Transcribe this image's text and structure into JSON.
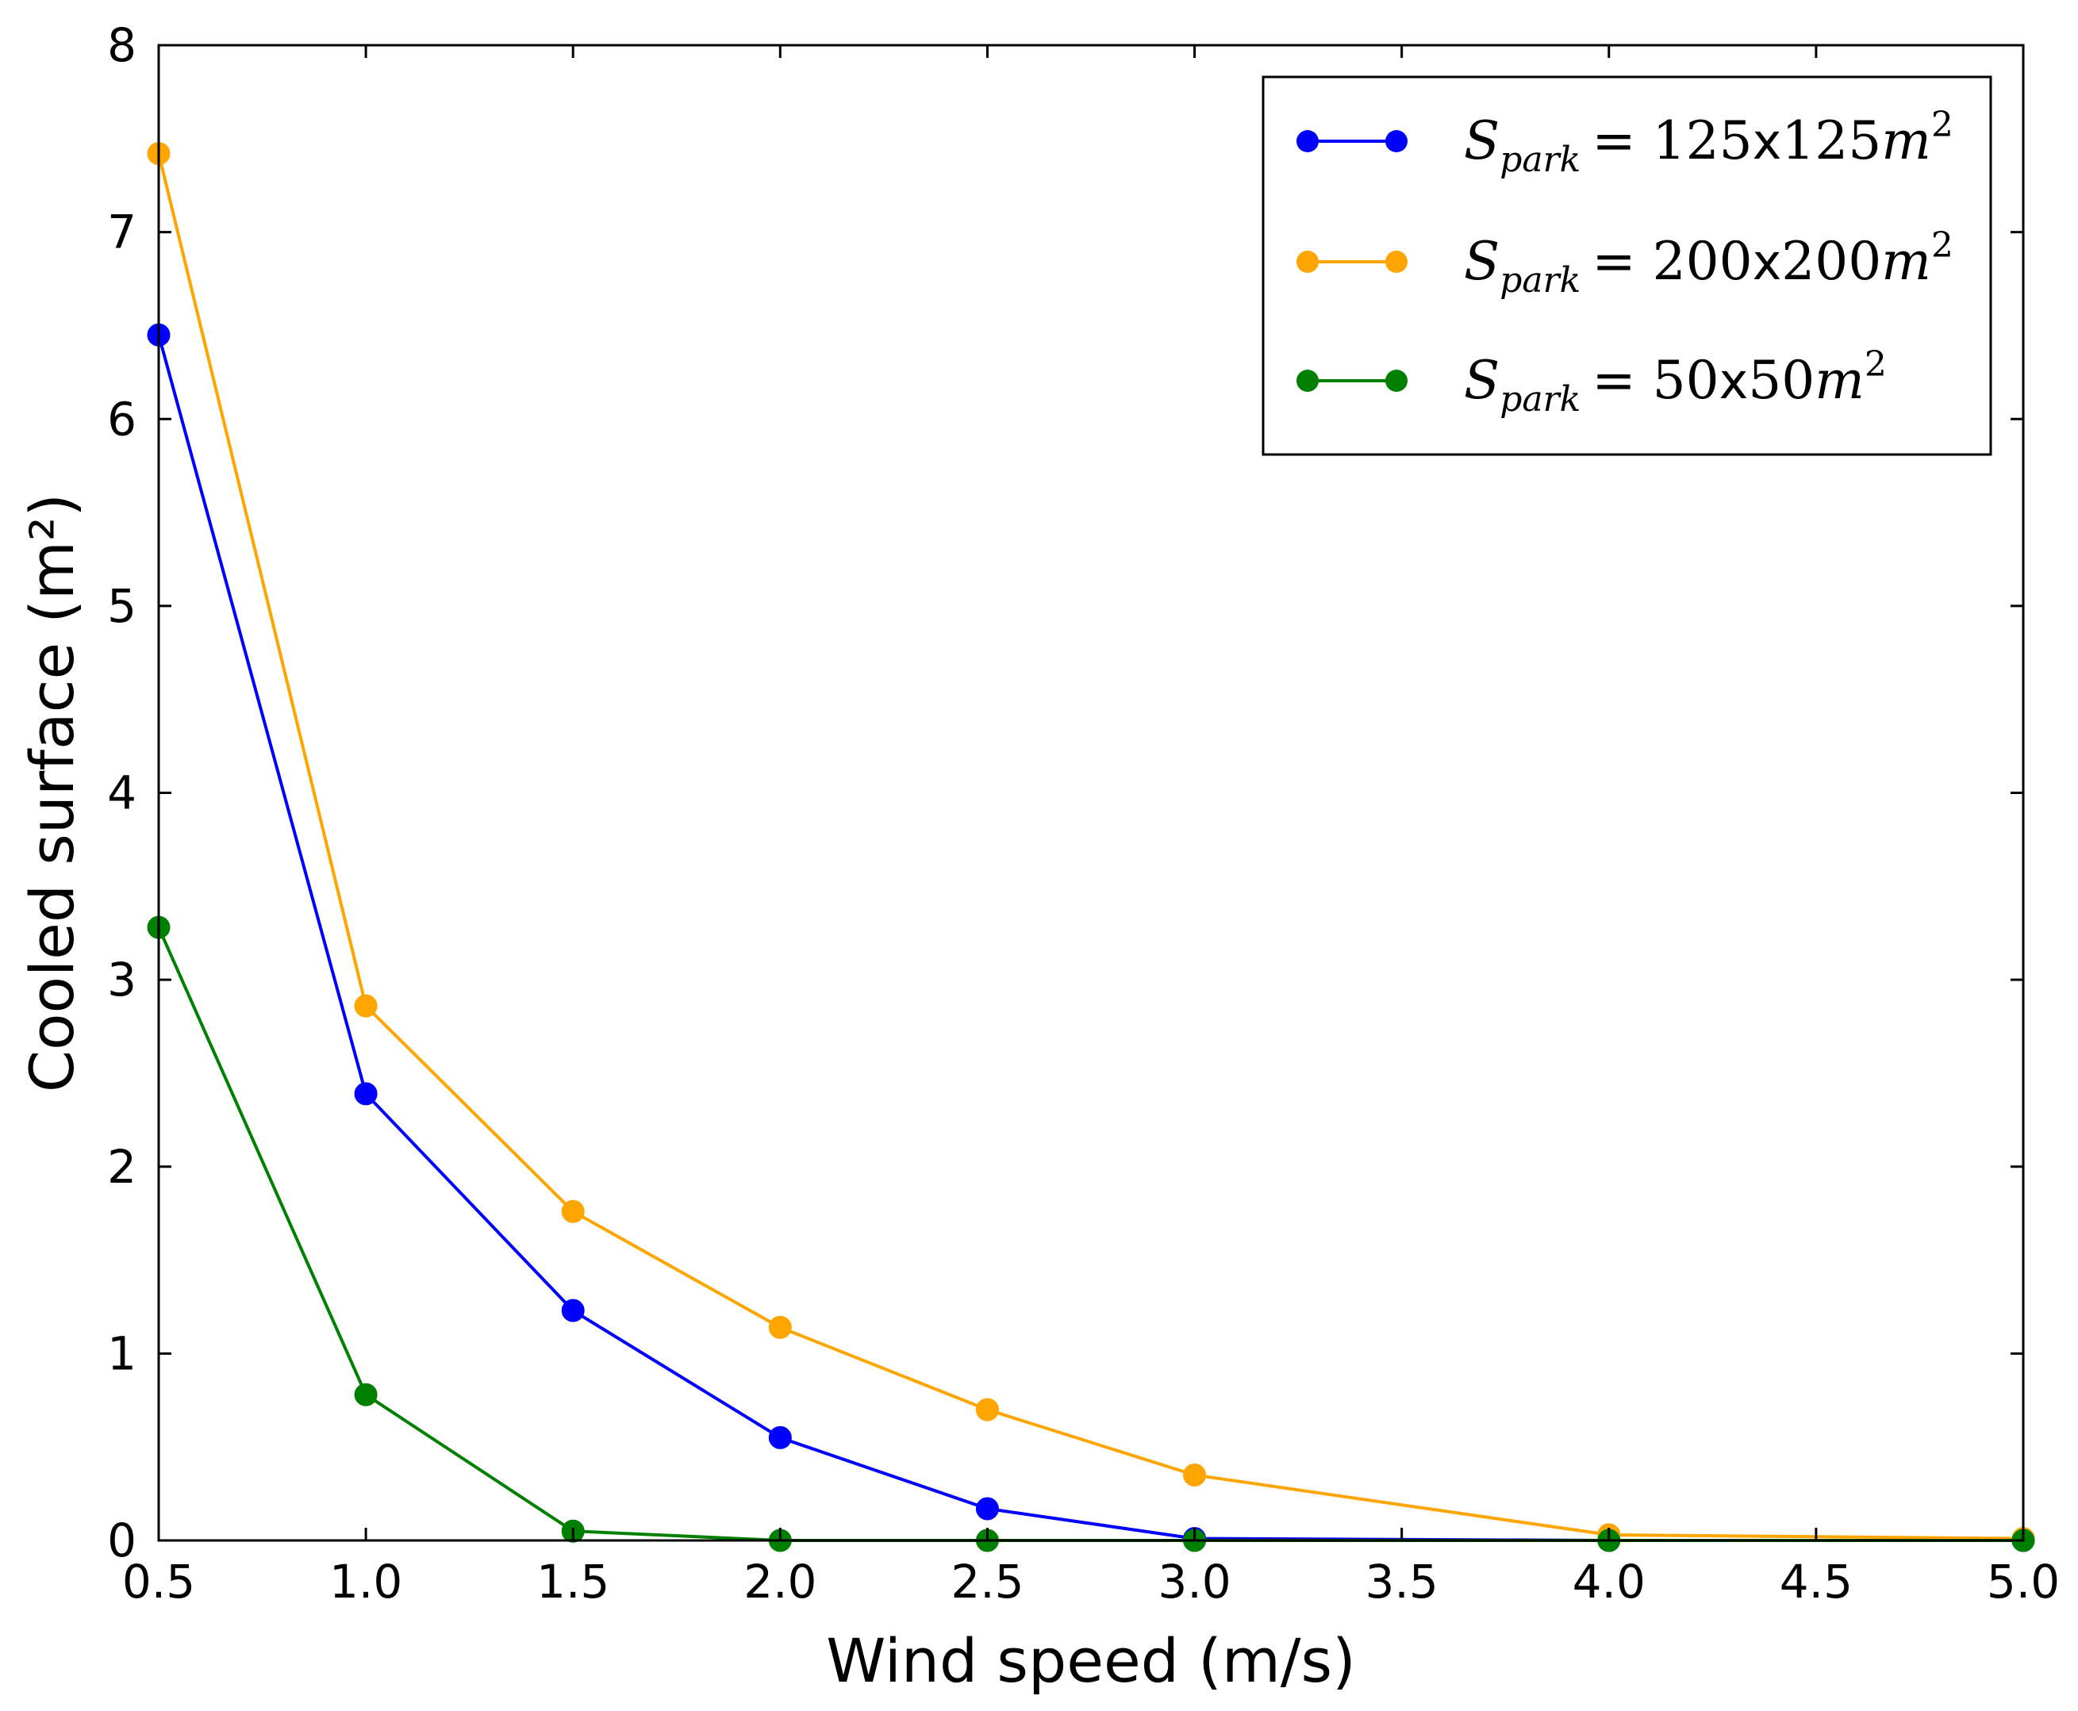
{
  "chart_data": {
    "type": "line",
    "title": "",
    "xlabel": "Wind speed (m/s)",
    "ylabel": "Cooled surface (m²)",
    "xlim": [
      0.5,
      5.0
    ],
    "ylim": [
      0,
      8
    ],
    "xticks": [
      "0.5",
      "1.0",
      "1.5",
      "2.0",
      "2.5",
      "3.0",
      "3.5",
      "4.0",
      "4.5",
      "5.0"
    ],
    "yticks": [
      "0",
      "1",
      "2",
      "3",
      "4",
      "5",
      "6",
      "7",
      "8"
    ],
    "grid": false,
    "legend_position": "top-right",
    "series": [
      {
        "name": "S_park = 125x125 m^2",
        "legend": {
          "sub": "park",
          "size": "125",
          "times": "x",
          "size2": "125",
          "unit": "m",
          "exp": "2"
        },
        "color": "#0000ff",
        "x": [
          0.5,
          1.0,
          1.5,
          2.0,
          2.5,
          3.0,
          4.0,
          5.0
        ],
        "values": [
          6.45,
          2.39,
          1.23,
          0.55,
          0.17,
          0.01,
          0.0,
          0.0
        ]
      },
      {
        "name": "S_park = 200x200 m^2",
        "legend": {
          "sub": "park",
          "size": "200",
          "times": "x",
          "size2": "200",
          "unit": "m",
          "exp": "2"
        },
        "color": "#ffa500",
        "x": [
          0.5,
          1.0,
          1.5,
          2.0,
          2.5,
          3.0,
          4.0,
          5.0
        ],
        "values": [
          7.42,
          2.86,
          1.76,
          1.14,
          0.7,
          0.35,
          0.03,
          0.01
        ]
      },
      {
        "name": "S_park = 50x50 m^2",
        "legend": {
          "sub": "park",
          "size": "50",
          "times": "x",
          "size2": "50",
          "unit": "m",
          "exp": "2"
        },
        "color": "#008000",
        "x": [
          0.5,
          1.0,
          1.5,
          2.0,
          2.5,
          3.0,
          4.0,
          5.0
        ],
        "values": [
          3.28,
          0.78,
          0.05,
          0.0,
          0.0,
          0.0,
          0.0,
          0.0
        ]
      }
    ]
  }
}
